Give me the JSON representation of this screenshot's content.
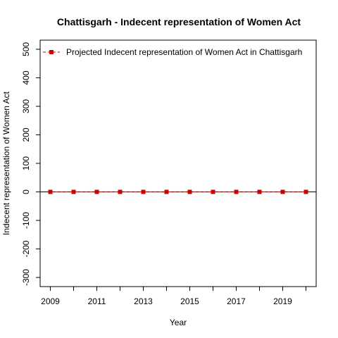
{
  "chart_data": {
    "type": "line",
    "title": "Chattisgarh  -  Indecent representation of Women Act",
    "xlabel": "Year",
    "ylabel": "Indecent representation of Women Act",
    "x": [
      2009,
      2010,
      2011,
      2012,
      2013,
      2014,
      2015,
      2016,
      2017,
      2018,
      2019,
      2020
    ],
    "x_ticks": [
      2009,
      2010,
      2011,
      2012,
      2013,
      2014,
      2015,
      2016,
      2017,
      2018,
      2019,
      2020
    ],
    "x_tick_labels": [
      "2009",
      "",
      "2011",
      "",
      "2013",
      "",
      "2015",
      "",
      "2017",
      "",
      "2019",
      ""
    ],
    "xlim": [
      2009,
      2020
    ],
    "ylim": [
      -300,
      500
    ],
    "y_ticks": [
      -300,
      -200,
      -100,
      0,
      100,
      200,
      300,
      400,
      500
    ],
    "y_tick_labels": [
      "-300",
      "-200",
      "-100",
      "0",
      "100",
      "200",
      "300",
      "400",
      "500"
    ],
    "reference_line_y": 0,
    "series": [
      {
        "name": "Projected  Indecent representation of Women Act  in  Chattisgarh",
        "color": "#cc0000",
        "marker": "square",
        "line_style": "dashed",
        "values": [
          0,
          0,
          0,
          0,
          0,
          0,
          0,
          0,
          0,
          0,
          0,
          0
        ]
      }
    ],
    "legend_position": "top-right",
    "grid": false
  }
}
